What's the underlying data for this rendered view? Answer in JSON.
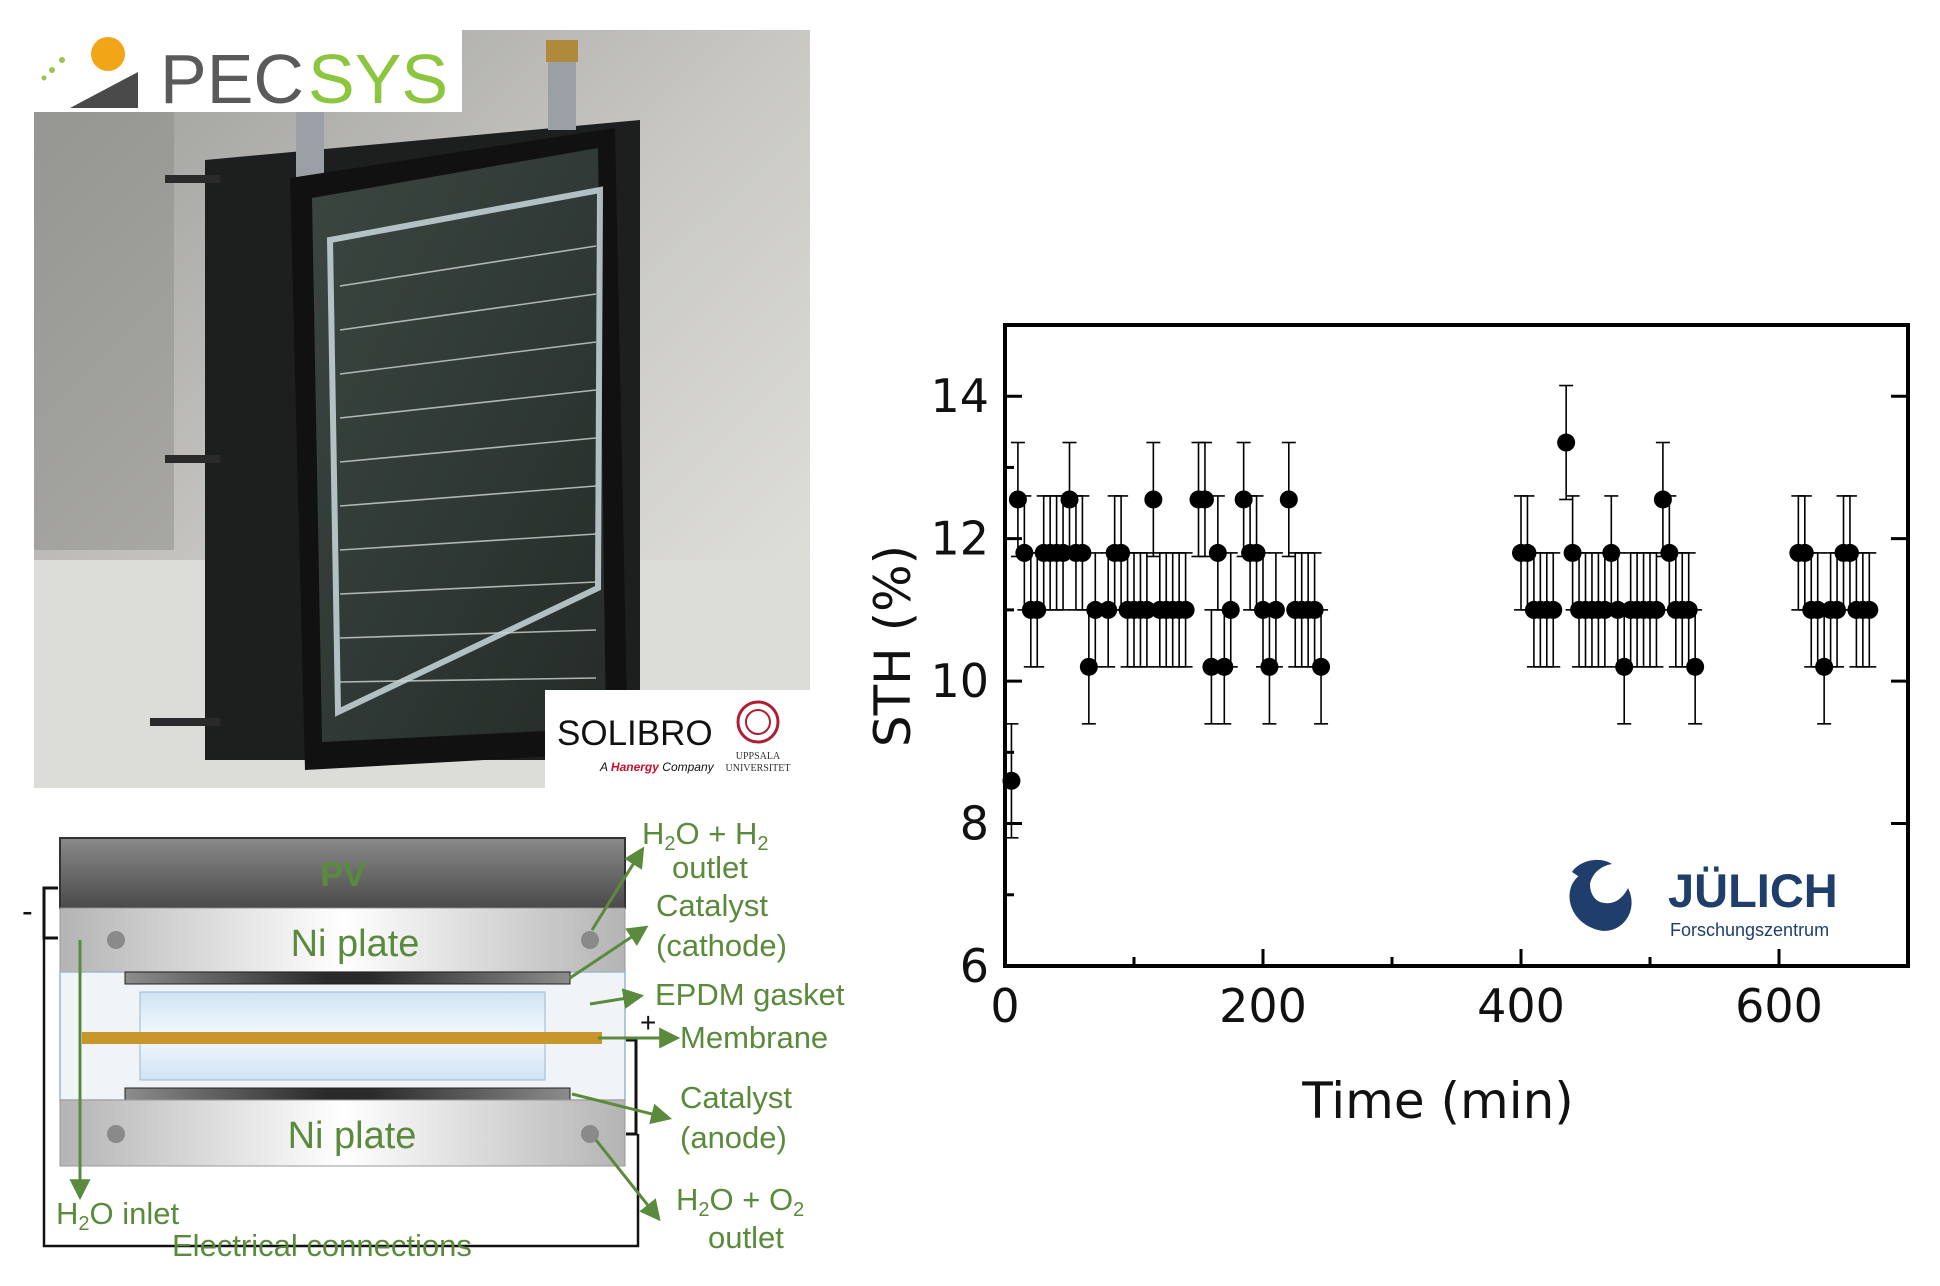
{
  "logos": {
    "pecsys_a": "PEC",
    "pecsys_b": "SYS",
    "solibro": "SOLIBRO",
    "solibro_tag_a": "A ",
    "solibro_tag_b": "Hanergy",
    "solibro_tag_c": " Company",
    "uppsala_1": "UPPSALA",
    "uppsala_2": "UNIVERSITET",
    "julich": "JÜLICH",
    "julich_sub": "Forschungszentrum"
  },
  "diagram": {
    "pv": "PV",
    "ni_top": "Ni plate",
    "ni_bottom": "Ni plate",
    "minus": "-",
    "plus": "+",
    "h2o_h2_line1": "H2O + H2",
    "h2o_h2_line2": "outlet",
    "cat_cath_line1": "Catalyst",
    "cat_cath_line2": "(cathode)",
    "epdm": "EPDM gasket",
    "membrane": "Membrane",
    "cat_an_line1": "Catalyst",
    "cat_an_line2": "(anode)",
    "h2o_o2_line1": "H2O + O2",
    "h2o_o2_line2": "outlet",
    "h2o_inlet": "H2O inlet",
    "elec": "Electrical connections"
  },
  "colors": {
    "diagram_text": "#5a8a3c",
    "pecsys_gray": "#5a5a5a",
    "pecsys_green": "#8cc63f",
    "julich_blue": "#1f3e6b",
    "hanergy_red": "#c8102e",
    "membrane": "#c8962a"
  },
  "chart_data": {
    "type": "scatter",
    "xlabel": "Time (min)",
    "ylabel": "STH (%)",
    "xlim": [
      0,
      700
    ],
    "ylim": [
      6,
      15
    ],
    "xticks": [
      0,
      200,
      400,
      600
    ],
    "yticks": [
      6,
      8,
      10,
      12,
      14
    ],
    "error_bar": 0.8,
    "points": [
      {
        "x": 5,
        "y": 8.6
      },
      {
        "x": 10,
        "y": 12.55
      },
      {
        "x": 15,
        "y": 11.8
      },
      {
        "x": 20,
        "y": 11.0
      },
      {
        "x": 25,
        "y": 11.0
      },
      {
        "x": 30,
        "y": 11.8
      },
      {
        "x": 35,
        "y": 11.8
      },
      {
        "x": 40,
        "y": 11.8
      },
      {
        "x": 45,
        "y": 11.8
      },
      {
        "x": 50,
        "y": 12.55
      },
      {
        "x": 55,
        "y": 11.8
      },
      {
        "x": 60,
        "y": 11.8
      },
      {
        "x": 65,
        "y": 10.2
      },
      {
        "x": 70,
        "y": 11.0
      },
      {
        "x": 80,
        "y": 11.0
      },
      {
        "x": 85,
        "y": 11.8
      },
      {
        "x": 90,
        "y": 11.8
      },
      {
        "x": 95,
        "y": 11.0
      },
      {
        "x": 100,
        "y": 11.0
      },
      {
        "x": 105,
        "y": 11.0
      },
      {
        "x": 110,
        "y": 11.0
      },
      {
        "x": 115,
        "y": 12.55
      },
      {
        "x": 120,
        "y": 11.0
      },
      {
        "x": 125,
        "y": 11.0
      },
      {
        "x": 130,
        "y": 11.0
      },
      {
        "x": 135,
        "y": 11.0
      },
      {
        "x": 140,
        "y": 11.0
      },
      {
        "x": 150,
        "y": 12.55
      },
      {
        "x": 155,
        "y": 12.55
      },
      {
        "x": 160,
        "y": 10.2
      },
      {
        "x": 165,
        "y": 11.8
      },
      {
        "x": 170,
        "y": 10.2
      },
      {
        "x": 175,
        "y": 11.0
      },
      {
        "x": 185,
        "y": 12.55
      },
      {
        "x": 190,
        "y": 11.8
      },
      {
        "x": 195,
        "y": 11.8
      },
      {
        "x": 200,
        "y": 11.0
      },
      {
        "x": 205,
        "y": 10.2
      },
      {
        "x": 210,
        "y": 11.0
      },
      {
        "x": 220,
        "y": 12.55
      },
      {
        "x": 225,
        "y": 11.0
      },
      {
        "x": 230,
        "y": 11.0
      },
      {
        "x": 235,
        "y": 11.0
      },
      {
        "x": 240,
        "y": 11.0
      },
      {
        "x": 245,
        "y": 10.2
      },
      {
        "x": 400,
        "y": 11.8
      },
      {
        "x": 405,
        "y": 11.8
      },
      {
        "x": 410,
        "y": 11.0
      },
      {
        "x": 415,
        "y": 11.0
      },
      {
        "x": 420,
        "y": 11.0
      },
      {
        "x": 425,
        "y": 11.0
      },
      {
        "x": 435,
        "y": 13.35
      },
      {
        "x": 440,
        "y": 11.8
      },
      {
        "x": 445,
        "y": 11.0
      },
      {
        "x": 450,
        "y": 11.0
      },
      {
        "x": 455,
        "y": 11.0
      },
      {
        "x": 460,
        "y": 11.0
      },
      {
        "x": 465,
        "y": 11.0
      },
      {
        "x": 470,
        "y": 11.8
      },
      {
        "x": 475,
        "y": 11.0
      },
      {
        "x": 480,
        "y": 10.2
      },
      {
        "x": 485,
        "y": 11.0
      },
      {
        "x": 490,
        "y": 11.0
      },
      {
        "x": 495,
        "y": 11.0
      },
      {
        "x": 500,
        "y": 11.0
      },
      {
        "x": 505,
        "y": 11.0
      },
      {
        "x": 510,
        "y": 12.55
      },
      {
        "x": 515,
        "y": 11.8
      },
      {
        "x": 520,
        "y": 11.0
      },
      {
        "x": 525,
        "y": 11.0
      },
      {
        "x": 530,
        "y": 11.0
      },
      {
        "x": 535,
        "y": 10.2
      },
      {
        "x": 615,
        "y": 11.8
      },
      {
        "x": 620,
        "y": 11.8
      },
      {
        "x": 625,
        "y": 11.0
      },
      {
        "x": 630,
        "y": 11.0
      },
      {
        "x": 635,
        "y": 10.2
      },
      {
        "x": 640,
        "y": 11.0
      },
      {
        "x": 645,
        "y": 11.0
      },
      {
        "x": 650,
        "y": 11.8
      },
      {
        "x": 655,
        "y": 11.8
      },
      {
        "x": 660,
        "y": 11.0
      },
      {
        "x": 665,
        "y": 11.0
      },
      {
        "x": 670,
        "y": 11.0
      }
    ]
  }
}
